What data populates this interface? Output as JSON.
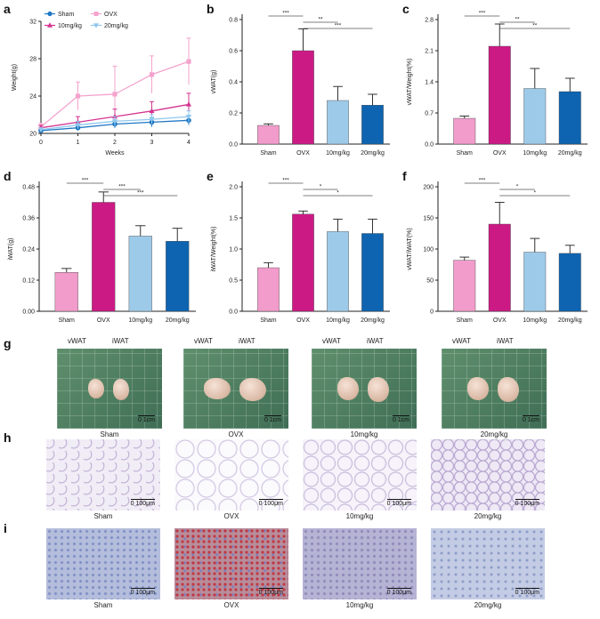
{
  "panels": {
    "a": "a",
    "b": "b",
    "c": "c",
    "d": "d",
    "e": "e",
    "f": "f",
    "g": "g",
    "h": "h",
    "i": "i"
  },
  "groups": [
    "Sham",
    "OVX",
    "10mg/kg",
    "20mg/kg"
  ],
  "colors": {
    "sham": "#f19ccb",
    "ovx": "#cc1a85",
    "low": "#9ecae9",
    "high": "#0e64b0",
    "line_sham": "#1f77c4",
    "line_ovx": "#f4a3cd",
    "line_10": "#d4338f",
    "line_20": "#8fc8ee"
  },
  "chart_data": [
    {
      "id": "a",
      "type": "line",
      "xlabel": "Weeks",
      "ylabel": "Weight(g)",
      "x": [
        0,
        1,
        2,
        3,
        4
      ],
      "xlim": [
        0,
        4
      ],
      "ylim": [
        20,
        32
      ],
      "yticks": [
        20,
        24,
        28,
        32
      ],
      "series": [
        {
          "name": "Sham",
          "values": [
            20.3,
            20.6,
            21.0,
            21.2,
            21.4
          ],
          "err": [
            0.2,
            0.3,
            0.4,
            0.5,
            0.5
          ],
          "color": "#1f77c4",
          "marker": "circle"
        },
        {
          "name": "OVX",
          "values": [
            20.7,
            24.0,
            24.2,
            26.3,
            27.7
          ],
          "err": [
            0.4,
            1.5,
            3.0,
            2.0,
            2.5
          ],
          "color": "#f4a3cd",
          "marker": "square"
        },
        {
          "name": "10mg/kg",
          "values": [
            20.6,
            21.2,
            21.8,
            22.4,
            23.1
          ],
          "err": [
            0.3,
            0.6,
            0.8,
            1.0,
            1.2
          ],
          "color": "#d4338f",
          "marker": "triangle"
        },
        {
          "name": "20mg/kg",
          "values": [
            20.4,
            20.9,
            21.3,
            21.5,
            21.8
          ],
          "err": [
            0.2,
            0.4,
            0.5,
            0.5,
            0.6
          ],
          "color": "#8fc8ee",
          "marker": "triangle-down"
        }
      ]
    },
    {
      "id": "b",
      "type": "bar",
      "ylabel": "vWAT(g)",
      "categories": [
        "Sham",
        "OVX",
        "10mg/kg",
        "20mg/kg"
      ],
      "values": [
        0.12,
        0.6,
        0.28,
        0.25
      ],
      "err": [
        0.01,
        0.14,
        0.09,
        0.07
      ],
      "ylim": [
        0,
        0.8
      ],
      "yticks": [
        0.0,
        0.2,
        0.4,
        0.6,
        0.8
      ],
      "sig": [
        "***",
        "**",
        "***"
      ]
    },
    {
      "id": "c",
      "type": "bar",
      "ylabel": "vWAT/Weight(%)",
      "categories": [
        "Sham",
        "OVX",
        "10mg/kg",
        "20mg/kg"
      ],
      "values": [
        0.58,
        2.2,
        1.25,
        1.18
      ],
      "err": [
        0.05,
        0.5,
        0.45,
        0.3
      ],
      "ylim": [
        0,
        2.8
      ],
      "yticks": [
        0.0,
        0.7,
        1.4,
        2.1,
        2.8
      ],
      "sig": [
        "***",
        "**",
        "**"
      ]
    },
    {
      "id": "d",
      "type": "bar",
      "ylabel": "iWAT(g)",
      "categories": [
        "Sham",
        "OVX",
        "10mg/kg",
        "20mg/kg"
      ],
      "values": [
        0.15,
        0.42,
        0.29,
        0.27
      ],
      "err": [
        0.015,
        0.04,
        0.04,
        0.05
      ],
      "ylim": [
        0,
        0.48
      ],
      "yticks": [
        0.0,
        0.12,
        0.24,
        0.36,
        0.48
      ],
      "sig": [
        "***",
        "***",
        "***"
      ]
    },
    {
      "id": "e",
      "type": "bar",
      "ylabel": "iWAT/Weight(%)",
      "categories": [
        "Sham",
        "OVX",
        "10mg/kg",
        "20mg/kg"
      ],
      "values": [
        0.7,
        1.56,
        1.28,
        1.25
      ],
      "err": [
        0.08,
        0.05,
        0.2,
        0.23
      ],
      "ylim": [
        0,
        2.0
      ],
      "yticks": [
        0.0,
        0.5,
        1.0,
        1.5,
        2.0
      ],
      "sig": [
        "***",
        "*",
        "*"
      ]
    },
    {
      "id": "f",
      "type": "bar",
      "ylabel": "vWAT/iWAT(%)",
      "categories": [
        "Sham",
        "OVX",
        "10mg/kg",
        "20mg/kg"
      ],
      "values": [
        82,
        140,
        95,
        93
      ],
      "err": [
        5,
        35,
        22,
        13
      ],
      "ylim": [
        0,
        200
      ],
      "yticks": [
        0,
        50,
        100,
        150,
        200
      ],
      "sig": [
        "***",
        "*",
        "*"
      ]
    }
  ],
  "photos": {
    "labels": {
      "v": "vWAT",
      "i": "iWAT"
    },
    "scale_g": "0     1cm",
    "scale_h": "0     100μm",
    "scale_i": "0     100μm",
    "captions": [
      "Sham",
      "OVX",
      "10mg/kg",
      "20mg/kg"
    ]
  }
}
